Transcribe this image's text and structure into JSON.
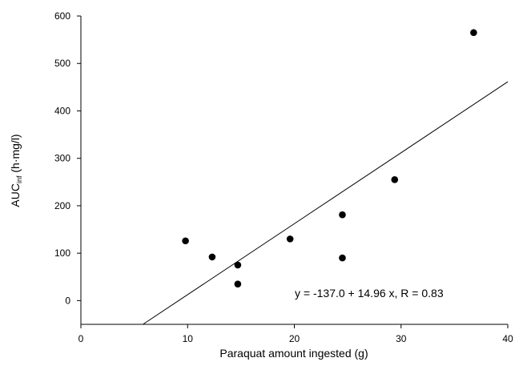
{
  "chart_data": {
    "type": "scatter",
    "title": "",
    "xlabel": "Paraquat amount ingested (g)",
    "ylabel": {
      "main": "AUC",
      "subscript": "inf",
      "units": " (h·mg/l)"
    },
    "xlim": [
      0,
      40
    ],
    "ylim": [
      -50,
      600
    ],
    "xticks": [
      0,
      10,
      20,
      30,
      40
    ],
    "yticks": [
      0,
      100,
      200,
      300,
      400,
      500,
      600
    ],
    "grid": false,
    "series": [
      {
        "points": [
          {
            "x": 9.8,
            "y": 126
          },
          {
            "x": 12.3,
            "y": 92
          },
          {
            "x": 14.7,
            "y": 75
          },
          {
            "x": 14.7,
            "y": 35
          },
          {
            "x": 19.6,
            "y": 130
          },
          {
            "x": 24.5,
            "y": 181
          },
          {
            "x": 24.5,
            "y": 90
          },
          {
            "x": 29.4,
            "y": 255
          },
          {
            "x": 36.8,
            "y": 565
          }
        ]
      }
    ],
    "regression": {
      "intercept": -137.0,
      "slope": 14.96,
      "R": 0.83
    },
    "annotation": "y = -137.0 + 14.96 x, R = 0.83",
    "colors": {
      "points": "#000000",
      "line": "#000000",
      "axes": "#000000"
    }
  }
}
